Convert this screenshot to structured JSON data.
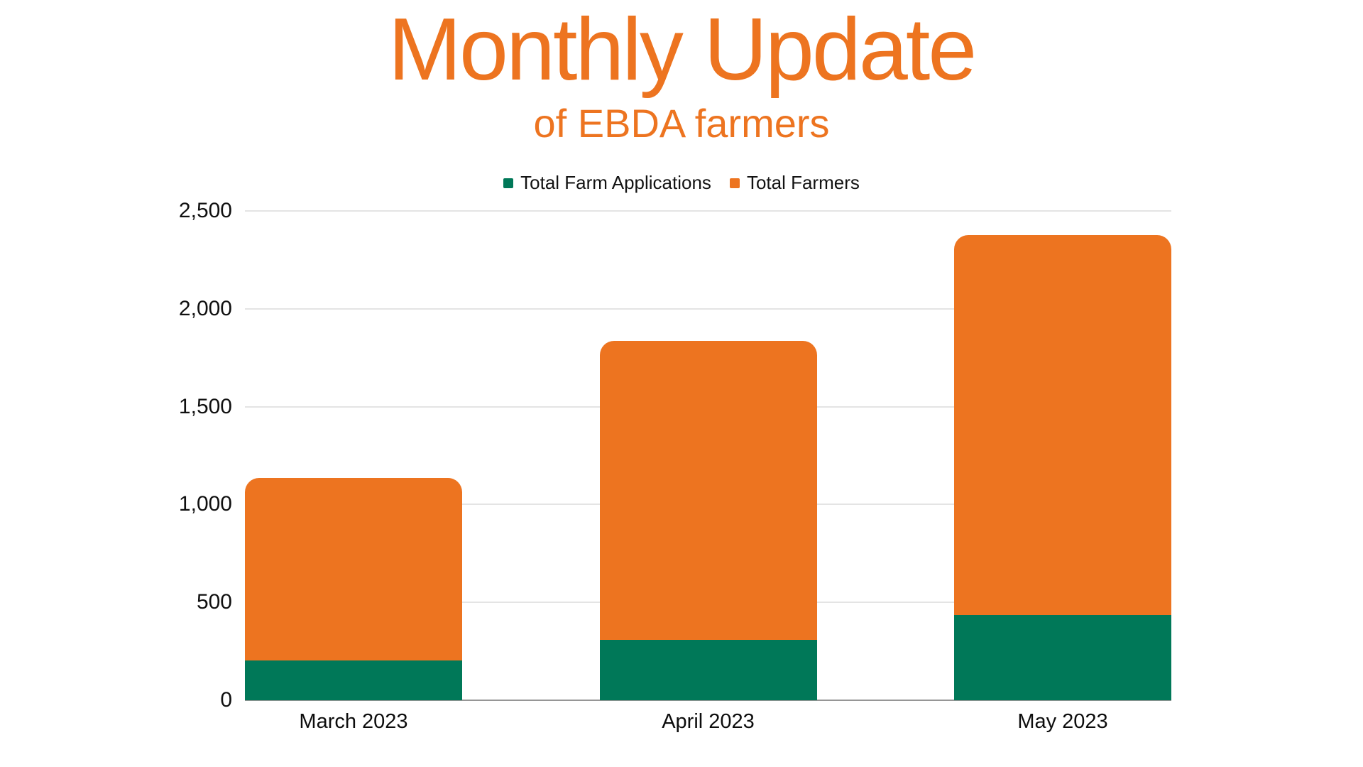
{
  "title": "Monthly Update",
  "subtitle": "of EBDA farmers",
  "colors": {
    "accent_orange": "#ED7420",
    "series_green": "#007858",
    "text_dark": "#131313",
    "gridline": "#E4E4E4",
    "axis_baseline": "#969696",
    "background": "#FFFFFF"
  },
  "legend": [
    {
      "label": "Total Farm Applications",
      "color": "#007858"
    },
    {
      "label": "Total Farmers",
      "color": "#ED7420"
    }
  ],
  "chart_data": {
    "type": "bar",
    "stacked": true,
    "title": "Monthly Update",
    "subtitle": "of EBDA farmers",
    "categories": [
      "March 2023",
      "April 2023",
      "May 2023"
    ],
    "series": [
      {
        "name": "Total Farm Applications",
        "color": "#007858",
        "values": [
          205,
          310,
          435
        ]
      },
      {
        "name": "Total Farmers",
        "color": "#ED7420",
        "values": [
          930,
          1525,
          1940
        ]
      }
    ],
    "stacked_totals": [
      1135,
      1835,
      2375
    ],
    "xlabel": "",
    "ylabel": "",
    "ylim": [
      0,
      2500
    ],
    "y_ticks": [
      0,
      500,
      1000,
      1500,
      2000,
      2500
    ],
    "y_tick_labels": [
      "0",
      "500",
      "1,000",
      "1,500",
      "2,000",
      "2,500"
    ],
    "grid": "horizontal",
    "legend_position": "top"
  }
}
